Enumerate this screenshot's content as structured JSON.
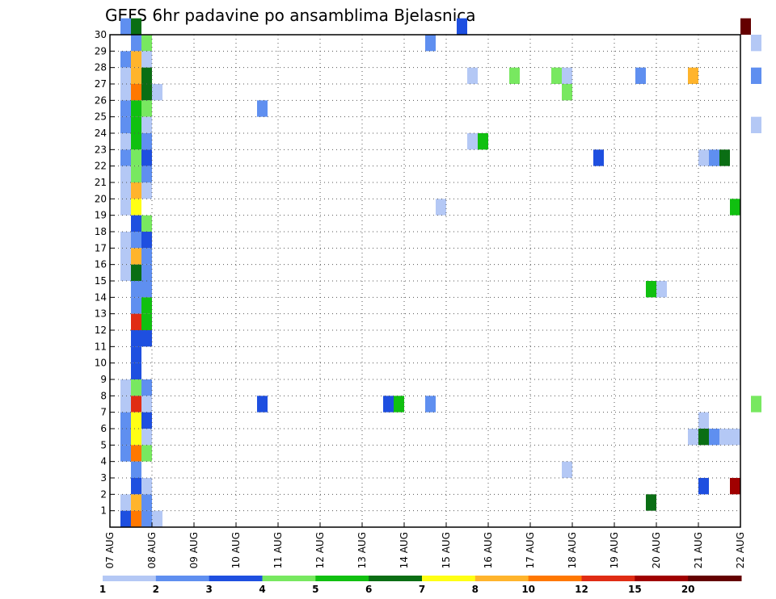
{
  "chart_data": {
    "type": "heatmap",
    "title": "GEFS 6hr padavine po ansamblima Bjelasnica",
    "xlabel": "",
    "ylabel": "",
    "x_ticks": [
      "07 AUG",
      "08 AUG",
      "09 AUG",
      "10 AUG",
      "11 AUG",
      "12 AUG",
      "13 AUG",
      "14 AUG",
      "15 AUG",
      "16 AUG",
      "17 AUG",
      "18 AUG",
      "19 AUG",
      "20 AUG",
      "21 AUG",
      "22 AUG"
    ],
    "y_ticks": [
      "1",
      "2",
      "3",
      "4",
      "5",
      "6",
      "7",
      "8",
      "9",
      "10",
      "11",
      "12",
      "13",
      "14",
      "15",
      "16",
      "17",
      "18",
      "19",
      "20",
      "21",
      "22",
      "23",
      "24",
      "25",
      "26",
      "27",
      "28",
      "29",
      "30"
    ],
    "time_step_hours": 6,
    "grid": true,
    "legend": {
      "placement": "bottom",
      "thresholds": [
        "1",
        "2",
        "3",
        "4",
        "5",
        "6",
        "7",
        "8",
        "10",
        "12",
        "15",
        "20"
      ],
      "colors": [
        "#b4c8f5",
        "#5f8ff0",
        "#1e4fe0",
        "#78e860",
        "#10c010",
        "#0a6e14",
        "#ffff14",
        "#ffb42c",
        "#ff7800",
        "#e02c14",
        "#a00000",
        "#640000"
      ]
    },
    "cells": [
      {
        "t": 1,
        "m": 30,
        "c": 1
      },
      {
        "t": 2,
        "m": 30,
        "c": 5
      },
      {
        "t": 33,
        "m": 30,
        "c": 2
      },
      {
        "t": 60,
        "m": 30,
        "c": 11
      },
      {
        "t": 2,
        "m": 29,
        "c": 1
      },
      {
        "t": 3,
        "m": 29,
        "c": 3
      },
      {
        "t": 30,
        "m": 29,
        "c": 1
      },
      {
        "t": 61,
        "m": 29,
        "c": 0
      },
      {
        "t": 1,
        "m": 28,
        "c": 1
      },
      {
        "t": 2,
        "m": 28,
        "c": 7
      },
      {
        "t": 3,
        "m": 28,
        "c": 0
      },
      {
        "t": 1,
        "m": 27,
        "c": 0
      },
      {
        "t": 2,
        "m": 27,
        "c": 7
      },
      {
        "t": 3,
        "m": 27,
        "c": 5
      },
      {
        "t": 34,
        "m": 27,
        "c": 0
      },
      {
        "t": 38,
        "m": 27,
        "c": 3
      },
      {
        "t": 42,
        "m": 27,
        "c": 3
      },
      {
        "t": 43,
        "m": 27,
        "c": 0
      },
      {
        "t": 50,
        "m": 27,
        "c": 1
      },
      {
        "t": 55,
        "m": 27,
        "c": 7
      },
      {
        "t": 61,
        "m": 27,
        "c": 1
      },
      {
        "t": 1,
        "m": 26,
        "c": 0
      },
      {
        "t": 2,
        "m": 26,
        "c": 8
      },
      {
        "t": 3,
        "m": 26,
        "c": 5
      },
      {
        "t": 4,
        "m": 26,
        "c": 0
      },
      {
        "t": 43,
        "m": 26,
        "c": 3
      },
      {
        "t": 1,
        "m": 25,
        "c": 1
      },
      {
        "t": 2,
        "m": 25,
        "c": 4
      },
      {
        "t": 3,
        "m": 25,
        "c": 3
      },
      {
        "t": 14,
        "m": 25,
        "c": 1
      },
      {
        "t": 1,
        "m": 24,
        "c": 1
      },
      {
        "t": 2,
        "m": 24,
        "c": 4
      },
      {
        "t": 3,
        "m": 24,
        "c": 0
      },
      {
        "t": 61,
        "m": 24,
        "c": 0
      },
      {
        "t": 1,
        "m": 23,
        "c": 0
      },
      {
        "t": 2,
        "m": 23,
        "c": 4
      },
      {
        "t": 3,
        "m": 23,
        "c": 1
      },
      {
        "t": 34,
        "m": 23,
        "c": 0
      },
      {
        "t": 35,
        "m": 23,
        "c": 4
      },
      {
        "t": 1,
        "m": 22,
        "c": 1
      },
      {
        "t": 2,
        "m": 22,
        "c": 3
      },
      {
        "t": 3,
        "m": 22,
        "c": 2
      },
      {
        "t": 46,
        "m": 22,
        "c": 2
      },
      {
        "t": 56,
        "m": 22,
        "c": 0
      },
      {
        "t": 57,
        "m": 22,
        "c": 1
      },
      {
        "t": 58,
        "m": 22,
        "c": 5
      },
      {
        "t": 1,
        "m": 21,
        "c": 0
      },
      {
        "t": 2,
        "m": 21,
        "c": 3
      },
      {
        "t": 3,
        "m": 21,
        "c": 1
      },
      {
        "t": 1,
        "m": 20,
        "c": 0
      },
      {
        "t": 2,
        "m": 20,
        "c": 7
      },
      {
        "t": 3,
        "m": 20,
        "c": 0
      },
      {
        "t": 1,
        "m": 19,
        "c": 0
      },
      {
        "t": 2,
        "m": 19,
        "c": 6
      },
      {
        "t": 31,
        "m": 19,
        "c": 0
      },
      {
        "t": 59,
        "m": 19,
        "c": 4
      },
      {
        "t": 2,
        "m": 18,
        "c": 2
      },
      {
        "t": 3,
        "m": 18,
        "c": 3
      },
      {
        "t": 1,
        "m": 17,
        "c": 0
      },
      {
        "t": 2,
        "m": 17,
        "c": 1
      },
      {
        "t": 3,
        "m": 17,
        "c": 2
      },
      {
        "t": 1,
        "m": 16,
        "c": 0
      },
      {
        "t": 2,
        "m": 16,
        "c": 7
      },
      {
        "t": 3,
        "m": 16,
        "c": 1
      },
      {
        "t": 1,
        "m": 15,
        "c": 0
      },
      {
        "t": 2,
        "m": 15,
        "c": 5
      },
      {
        "t": 3,
        "m": 15,
        "c": 1
      },
      {
        "t": 2,
        "m": 14,
        "c": 1
      },
      {
        "t": 3,
        "m": 14,
        "c": 1
      },
      {
        "t": 51,
        "m": 14,
        "c": 4
      },
      {
        "t": 52,
        "m": 14,
        "c": 0
      },
      {
        "t": 2,
        "m": 13,
        "c": 1
      },
      {
        "t": 3,
        "m": 13,
        "c": 4
      },
      {
        "t": 2,
        "m": 12,
        "c": 9
      },
      {
        "t": 3,
        "m": 12,
        "c": 4
      },
      {
        "t": 2,
        "m": 11,
        "c": 2
      },
      {
        "t": 3,
        "m": 11,
        "c": 2
      },
      {
        "t": 2,
        "m": 10,
        "c": 2
      },
      {
        "t": 2,
        "m": 9,
        "c": 2
      },
      {
        "t": 1,
        "m": 8,
        "c": 0
      },
      {
        "t": 2,
        "m": 8,
        "c": 3
      },
      {
        "t": 3,
        "m": 8,
        "c": 1
      },
      {
        "t": 1,
        "m": 7,
        "c": 0
      },
      {
        "t": 2,
        "m": 7,
        "c": 9
      },
      {
        "t": 3,
        "m": 7,
        "c": 0
      },
      {
        "t": 14,
        "m": 7,
        "c": 2
      },
      {
        "t": 26,
        "m": 7,
        "c": 2
      },
      {
        "t": 27,
        "m": 7,
        "c": 4
      },
      {
        "t": 30,
        "m": 7,
        "c": 1
      },
      {
        "t": 61,
        "m": 7,
        "c": 3
      },
      {
        "t": 1,
        "m": 6,
        "c": 1
      },
      {
        "t": 2,
        "m": 6,
        "c": 6
      },
      {
        "t": 3,
        "m": 6,
        "c": 2
      },
      {
        "t": 56,
        "m": 6,
        "c": 0
      },
      {
        "t": 1,
        "m": 5,
        "c": 1
      },
      {
        "t": 2,
        "m": 5,
        "c": 6
      },
      {
        "t": 3,
        "m": 5,
        "c": 0
      },
      {
        "t": 55,
        "m": 5,
        "c": 0
      },
      {
        "t": 56,
        "m": 5,
        "c": 5
      },
      {
        "t": 57,
        "m": 5,
        "c": 1
      },
      {
        "t": 58,
        "m": 5,
        "c": 0
      },
      {
        "t": 59,
        "m": 5,
        "c": 0
      },
      {
        "t": 1,
        "m": 4,
        "c": 1
      },
      {
        "t": 2,
        "m": 4,
        "c": 8
      },
      {
        "t": 3,
        "m": 4,
        "c": 3
      },
      {
        "t": 2,
        "m": 3,
        "c": 1
      },
      {
        "t": 43,
        "m": 3,
        "c": 0
      },
      {
        "t": 2,
        "m": 2,
        "c": 2
      },
      {
        "t": 3,
        "m": 2,
        "c": 0
      },
      {
        "t": 56,
        "m": 2,
        "c": 2
      },
      {
        "t": 59,
        "m": 2,
        "c": 10
      },
      {
        "t": 1,
        "m": 1,
        "c": 0
      },
      {
        "t": 2,
        "m": 1,
        "c": 7
      },
      {
        "t": 3,
        "m": 1,
        "c": 1
      },
      {
        "t": 51,
        "m": 1,
        "c": 5
      },
      {
        "t": 1,
        "m": 0,
        "c": 2
      },
      {
        "t": 2,
        "m": 0,
        "c": 8
      },
      {
        "t": 3,
        "m": 0,
        "c": 1
      },
      {
        "t": 4,
        "m": 0,
        "c": 0
      }
    ]
  }
}
